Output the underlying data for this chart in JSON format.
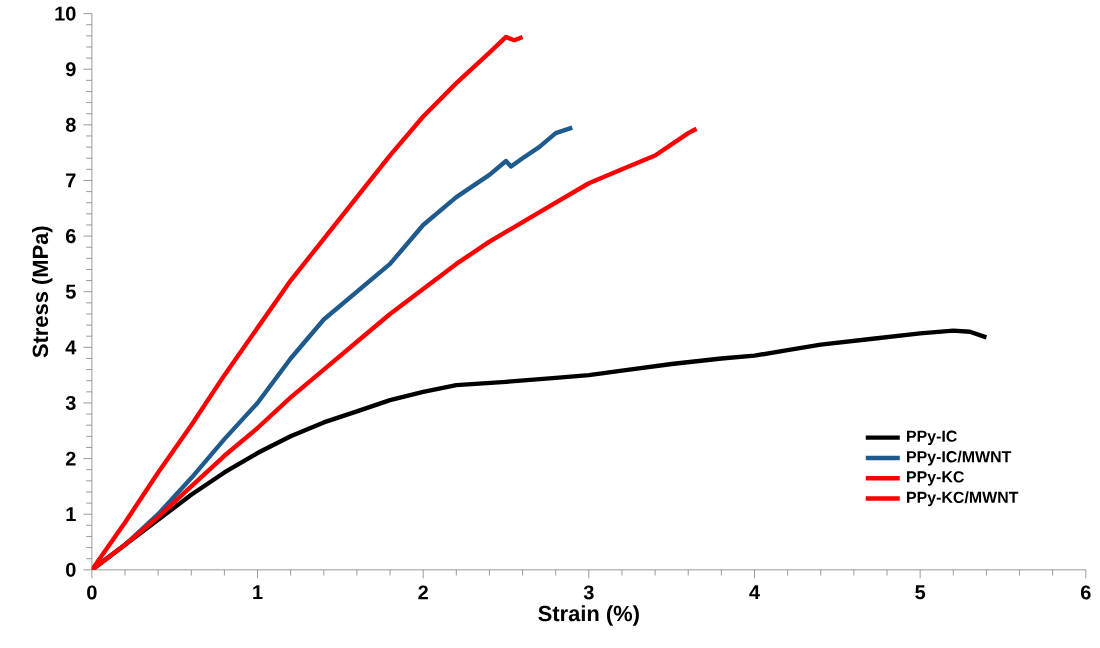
{
  "chart_data": {
    "type": "line",
    "xlabel": "Strain (%)",
    "ylabel": "Stress (MPa)",
    "xlim": [
      0,
      6
    ],
    "ylim": [
      0,
      10
    ],
    "xticks": [
      0,
      1,
      2,
      3,
      4,
      5,
      6
    ],
    "yticks": [
      0,
      1,
      2,
      3,
      4,
      5,
      6,
      7,
      8,
      9,
      10
    ],
    "grid": false,
    "legend": "bottom right",
    "marker": "none",
    "line_style": "solid",
    "series": [
      {
        "name": "PPy-IC",
        "color": "#000000",
        "x": [
          0,
          0.2,
          0.4,
          0.6,
          0.8,
          1.0,
          1.2,
          1.4,
          1.6,
          1.8,
          2.0,
          2.2,
          2.5,
          2.8,
          3.0,
          3.2,
          3.5,
          3.8,
          4.0,
          4.2,
          4.4,
          4.7,
          5.0,
          5.2,
          5.3,
          5.4
        ],
        "values": [
          0,
          0.45,
          0.9,
          1.35,
          1.75,
          2.1,
          2.4,
          2.65,
          2.85,
          3.05,
          3.2,
          3.32,
          3.38,
          3.45,
          3.5,
          3.58,
          3.7,
          3.8,
          3.85,
          3.95,
          4.05,
          4.15,
          4.25,
          4.3,
          4.28,
          4.18
        ]
      },
      {
        "name": "PPy-IC/MWNT",
        "color": "#1f5a8c",
        "x": [
          0,
          0.2,
          0.4,
          0.6,
          0.8,
          1.0,
          1.2,
          1.4,
          1.6,
          1.8,
          2.0,
          2.2,
          2.4,
          2.5,
          2.53,
          2.6,
          2.7,
          2.8,
          2.9
        ],
        "values": [
          0,
          0.45,
          1.0,
          1.65,
          2.35,
          3.0,
          3.8,
          4.5,
          5.0,
          5.5,
          6.2,
          6.7,
          7.1,
          7.35,
          7.25,
          7.4,
          7.6,
          7.85,
          7.95
        ]
      },
      {
        "name": "PPy-KC",
        "color": "#ff0000",
        "x": [
          0,
          0.2,
          0.4,
          0.6,
          0.8,
          1.0,
          1.2,
          1.4,
          1.6,
          1.8,
          2.0,
          2.2,
          2.4,
          2.6,
          2.8,
          3.0,
          3.2,
          3.4,
          3.6,
          3.65
        ],
        "values": [
          0,
          0.45,
          0.95,
          1.5,
          2.05,
          2.55,
          3.1,
          3.6,
          4.1,
          4.6,
          5.05,
          5.5,
          5.9,
          6.25,
          6.6,
          6.95,
          7.2,
          7.45,
          7.85,
          7.93
        ]
      },
      {
        "name": "PPy-KC/MWNT",
        "color": "#ff0000",
        "x": [
          0,
          0.2,
          0.4,
          0.6,
          0.8,
          1.0,
          1.2,
          1.4,
          1.6,
          1.8,
          2.0,
          2.2,
          2.4,
          2.5,
          2.55,
          2.6
        ],
        "values": [
          0,
          0.85,
          1.75,
          2.6,
          3.5,
          4.35,
          5.2,
          5.95,
          6.7,
          7.45,
          8.15,
          8.75,
          9.3,
          9.58,
          9.52,
          9.58
        ]
      }
    ]
  }
}
